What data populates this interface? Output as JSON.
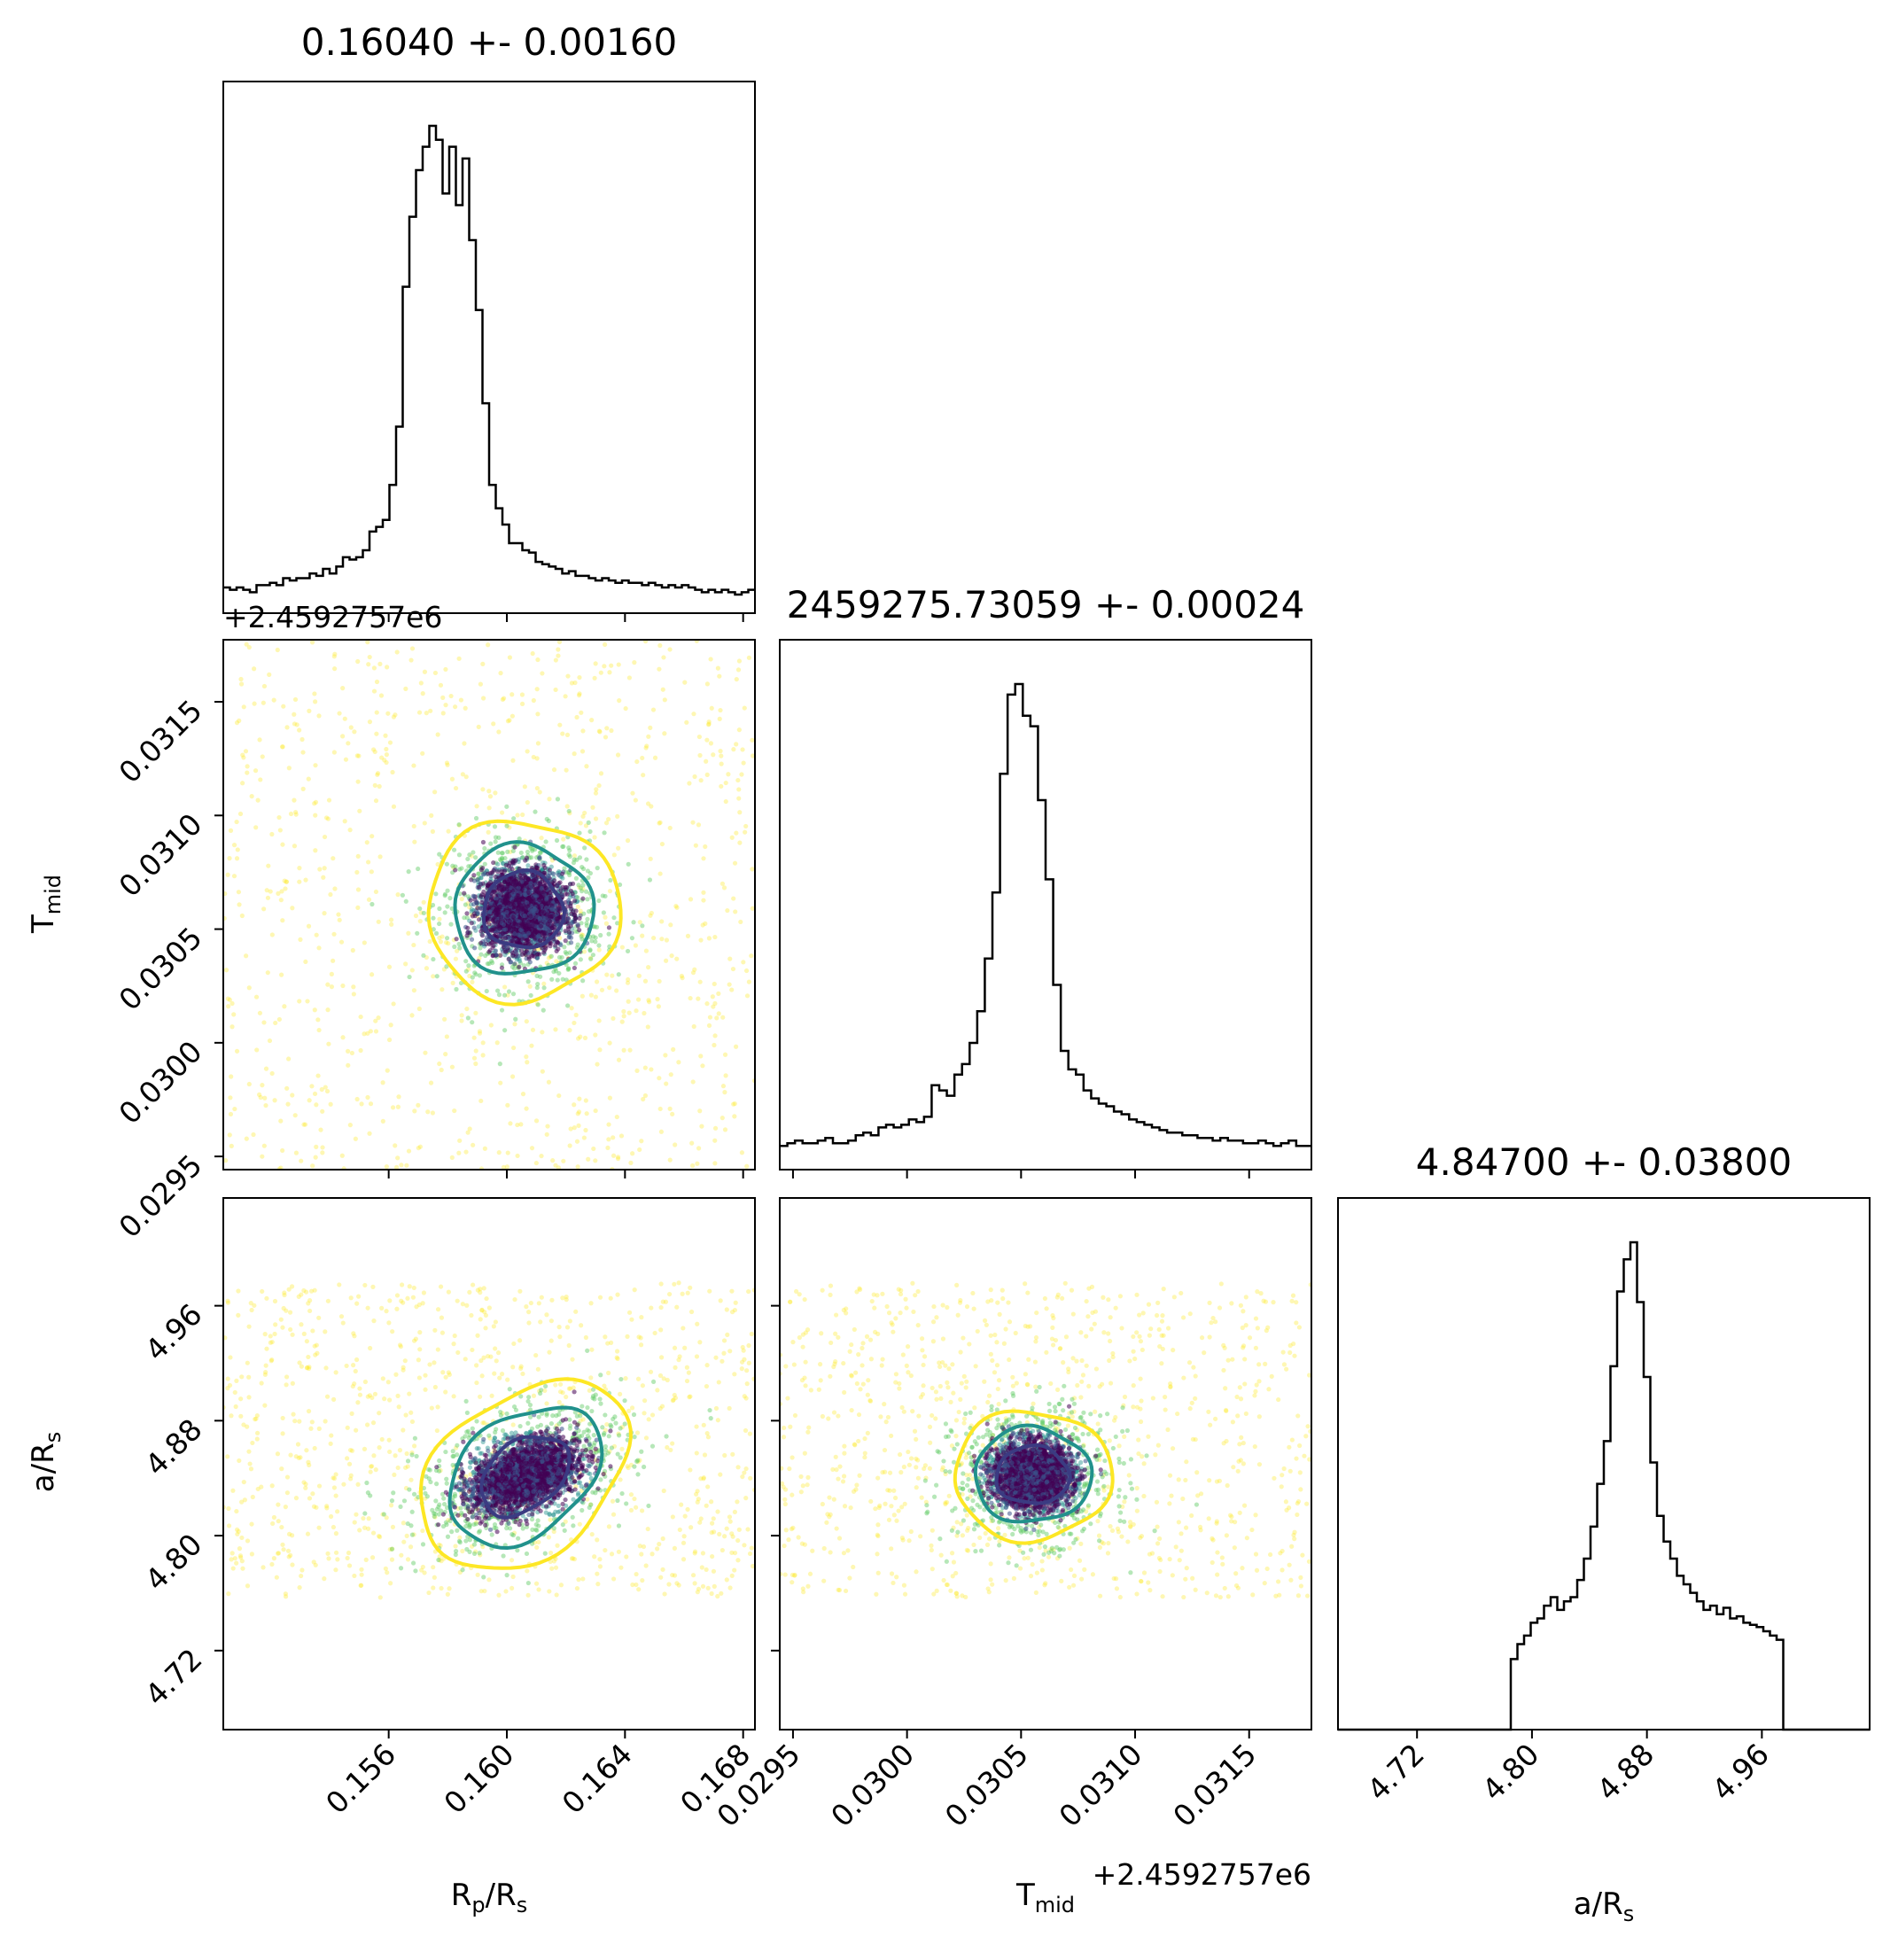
{
  "chart_data": {
    "type": "scatter",
    "subtype": "corner-plot",
    "parameters": [
      {
        "id": "rp",
        "label_main": "R",
        "label_sub": "p",
        "label_rest": "/R",
        "label_sub2": "s",
        "range": [
          0.1504,
          0.1684
        ]
      },
      {
        "id": "tmid",
        "label_main": "T",
        "label_sub": "mid",
        "label_rest": "",
        "label_sub2": "",
        "range": [
          0.029442,
          0.031773
        ]
      },
      {
        "id": "ars",
        "label_main": "a/R",
        "label_sub": "s",
        "label_rest": "",
        "label_sub2": "",
        "range": [
          4.665,
          5.035
        ]
      }
    ],
    "titles": [
      "0.16040 +- 0.00160",
      "2459275.73059 +- 0.00024",
      "4.84700 +- 0.03800"
    ],
    "ticks": {
      "rp": [
        "0.156",
        "0.160",
        "0.164",
        "0.168"
      ],
      "rp_values": [
        0.156,
        0.16,
        0.164,
        0.168
      ],
      "tmid": [
        "0.0295",
        "0.0300",
        "0.0305",
        "0.0310",
        "0.0315"
      ],
      "tmid_values": [
        0.0295,
        0.03,
        0.0305,
        0.031,
        0.0315
      ],
      "ars": [
        "4.72",
        "4.80",
        "4.88",
        "4.96"
      ],
      "ars_values": [
        4.72,
        4.8,
        4.88,
        4.96
      ]
    },
    "offset_text": "+2.4592757e6",
    "offset_text_x": "T+2.4592757e6",
    "histograms": {
      "rp": {
        "bin_edges": [
          0.1504,
          0.1688
        ],
        "counts": [
          11,
          10,
          11,
          10,
          9,
          12,
          12,
          13,
          12,
          15,
          14,
          15,
          15,
          17,
          16,
          19,
          17,
          20,
          24,
          23,
          24,
          27,
          35,
          37,
          40,
          55,
          80,
          140,
          170,
          190,
          200,
          209,
          203,
          180,
          200,
          175,
          195,
          160,
          130,
          90,
          55,
          45,
          38,
          30,
          30,
          27,
          26,
          22,
          21,
          20,
          19,
          17,
          18,
          16,
          16,
          15,
          14,
          15,
          14,
          13,
          14,
          13,
          13,
          12,
          13,
          12,
          11,
          12,
          11,
          12,
          11,
          10,
          9,
          10,
          9,
          10,
          9,
          8,
          9,
          10
        ]
      },
      "tmid": {
        "bin_edges": [
          0.029442,
          0.031773
        ],
        "counts": [
          9,
          10,
          11,
          10,
          10,
          11,
          12,
          10,
          10,
          11,
          13,
          14,
          13,
          16,
          17,
          16,
          17,
          19,
          18,
          20,
          32,
          30,
          28,
          36,
          40,
          48,
          60,
          80,
          105,
          150,
          180,
          184,
          172,
          168,
          140,
          110,
          70,
          45,
          38,
          36,
          30,
          27,
          25,
          24,
          22,
          21,
          19,
          18,
          17,
          16,
          15,
          14,
          14,
          13,
          13,
          12,
          12,
          11,
          12,
          11,
          11,
          10,
          10,
          11,
          10,
          9,
          10,
          11,
          9,
          9
        ]
      },
      "ars": {
        "bin_edges": [
          4.665,
          5.035
        ],
        "counts": [
          0,
          0,
          0,
          0,
          0,
          0,
          0,
          0,
          0,
          0,
          0,
          0,
          0,
          0,
          0,
          0,
          0,
          0,
          0,
          0,
          0,
          0,
          0,
          0,
          0,
          0,
          33,
          40,
          44,
          50,
          52,
          58,
          62,
          56,
          60,
          62,
          70,
          80,
          95,
          115,
          135,
          170,
          205,
          220,
          228,
          200,
          165,
          125,
          100,
          88,
          80,
          72,
          68,
          64,
          60,
          56,
          58,
          54,
          57,
          52,
          53,
          50,
          49,
          48,
          46,
          44,
          42,
          0,
          0,
          0,
          0,
          0,
          0,
          0,
          0,
          0,
          0,
          0,
          0,
          0
        ]
      }
    },
    "contours": {
      "levels": [
        "inner",
        "middle",
        "outer"
      ],
      "colors": [
        "#3b3b82",
        "#21918c",
        "#fde725"
      ],
      "tmid_vs_rp": {
        "center": [
          0.16055,
          0.030583
        ],
        "radii_x": [
          0.00135,
          0.00235,
          0.00325
        ],
        "radii_y": [
          0.000168,
          0.000285,
          0.000395
        ]
      },
      "ars_vs_rp": {
        "center": [
          0.1606,
          4.842
        ],
        "radius_major": [
          0.022,
          0.038,
          0.052
        ],
        "radius_minor": [
          0.016,
          0.028,
          0.038
        ]
      },
      "ars_vs_tmid": {
        "center": [
          0.03055,
          4.842
        ],
        "radii_x": [
          0.00016,
          0.000255,
          0.000345
        ],
        "radii_y": [
          0.02,
          0.033,
          0.045
        ]
      }
    },
    "scatter_bounds": {
      "ars": [
        4.757,
        4.977
      ]
    },
    "colors": {
      "hist": "#000000",
      "dense": "#440154",
      "mid": "#3b528b",
      "teal": "#21918c",
      "green": "#5ec962",
      "yellow": "#fde725"
    },
    "grid": false,
    "legend": "none"
  }
}
